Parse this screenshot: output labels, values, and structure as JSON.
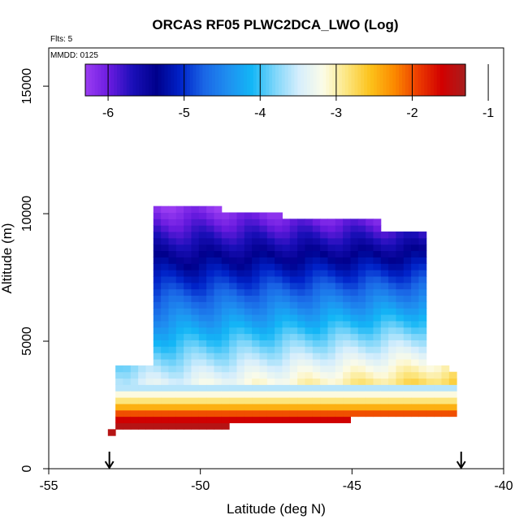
{
  "chart_data": {
    "type": "heatmap",
    "title": "ORCAS RF05 PLWC2DCA_LWO (Log)",
    "flights_label": "Flts: 5",
    "date_label": "MMDD: 0125",
    "xlabel": "Latitude (deg N)",
    "ylabel": "Altitude (m)",
    "xlim": [
      -55,
      -40
    ],
    "ylim": [
      0,
      16500
    ],
    "x_ticks": [
      -55,
      -50,
      -45,
      -40
    ],
    "y_ticks": [
      0,
      5000,
      10000,
      15000
    ],
    "colorbar": {
      "ticks": [
        -6,
        -5,
        -4,
        -3,
        -2,
        -1
      ],
      "range": [
        -6.3,
        -1.3
      ],
      "colors": [
        "#9b3df2",
        "#6a1be0",
        "#1a0fb8",
        "#00008c",
        "#0022c8",
        "#1a66e6",
        "#1f8ff0",
        "#13b6f6",
        "#7fd6fa",
        "#d6eefc",
        "#fcfce8",
        "#fce680",
        "#fcc21a",
        "#fc8a00",
        "#ec3c00",
        "#d20000",
        "#a81e1e"
      ]
    },
    "arrows_at_latitude": [
      -53,
      -41.4
    ],
    "series": [
      {
        "kind": "cloud_log_lwc",
        "lat_range": [
          -52.8,
          -42.0
        ],
        "alt_range": [
          1300,
          10400
        ],
        "value_range": [
          -6.0,
          -1.3
        ]
      }
    ]
  }
}
